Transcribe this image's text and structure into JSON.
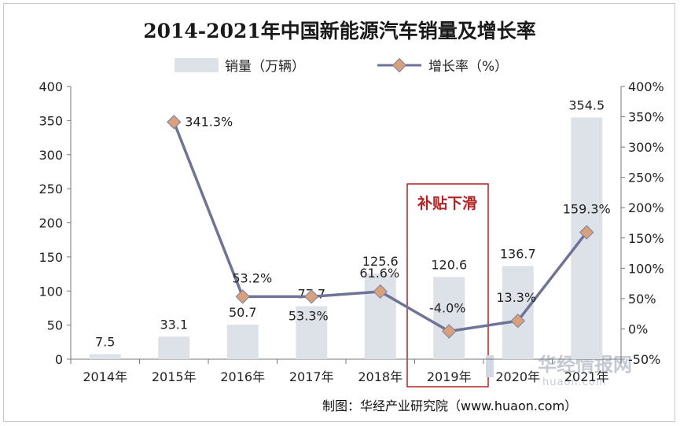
{
  "chart_data": {
    "type": "bar",
    "title": "2014-2021年中国新能源汽车销量及增长率",
    "categories": [
      "2014年",
      "2015年",
      "2016年",
      "2017年",
      "2018年",
      "2019年",
      "2020年",
      "2021年"
    ],
    "series": [
      {
        "name": "销量（万辆）",
        "type": "bar",
        "axis": "left",
        "values": [
          7.5,
          33.1,
          50.7,
          77.7,
          125.6,
          120.6,
          136.7,
          354.5
        ],
        "labels": [
          "7.5",
          "33.1",
          "50.7",
          "77.7",
          "125.6",
          "120.6",
          "136.7",
          "354.5"
        ]
      },
      {
        "name": "增长率（%）",
        "type": "line",
        "axis": "right",
        "values": [
          null,
          341.3,
          53.2,
          53.3,
          61.6,
          -4.0,
          13.3,
          159.3
        ],
        "labels": [
          "",
          "341.3%",
          "53.2%",
          "53.3%",
          "61.6%",
          "-4.0%",
          "13.3%",
          "159.3%"
        ]
      }
    ],
    "y_left": {
      "min": 0,
      "max": 400,
      "ticks": [
        "0",
        "50",
        "100",
        "150",
        "200",
        "250",
        "300",
        "350",
        "400"
      ]
    },
    "y_right": {
      "min": -50,
      "max": 400,
      "ticks": [
        "-50%",
        "0%",
        "50%",
        "100%",
        "150%",
        "200%",
        "250%",
        "300%",
        "350%",
        "400%"
      ]
    },
    "legend": {
      "position": "top"
    },
    "grid": false,
    "annotation": {
      "text": "补贴下滑",
      "category": "2019年"
    }
  },
  "source": "制图：华经产业研究院（www.huaon.com）",
  "watermark": {
    "cn": "华经情报网",
    "en": "huaon.com"
  },
  "colors": {
    "bar": "#dde1e8",
    "line": "#6f7396",
    "marker_fill": "#d9a07c",
    "marker_stroke": "#7a7fa0",
    "annotation": "#b22222"
  }
}
